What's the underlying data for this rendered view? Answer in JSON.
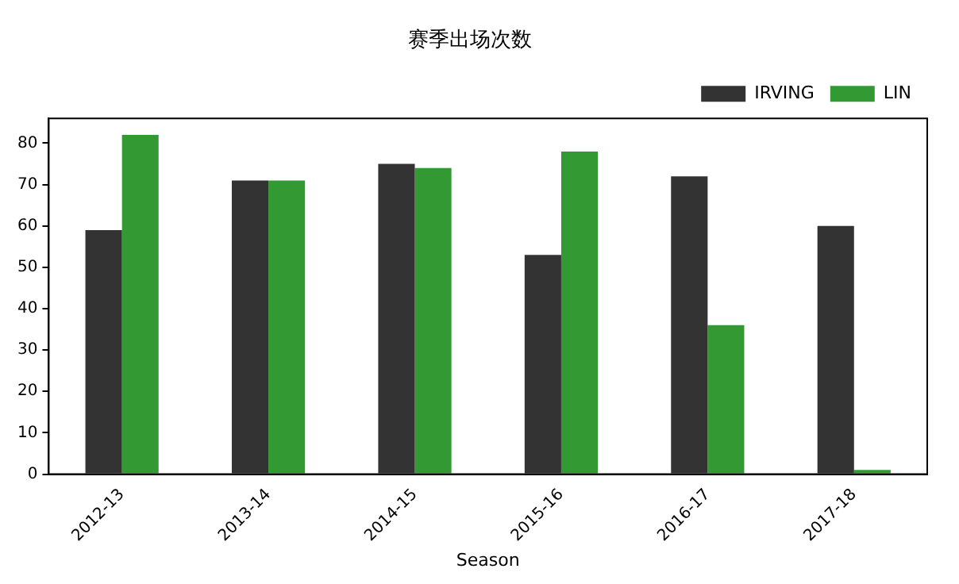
{
  "chart_data": {
    "type": "bar",
    "title": "赛季出场次数",
    "xlabel": "Season",
    "categories": [
      "2012-13",
      "2013-14",
      "2014-15",
      "2015-16",
      "2016-17",
      "2017-18"
    ],
    "series": [
      {
        "name": "IRVING",
        "color": "#333333",
        "values": [
          59,
          71,
          75,
          53,
          72,
          60
        ]
      },
      {
        "name": "LIN",
        "color": "#339933",
        "values": [
          82,
          71,
          74,
          78,
          36,
          1
        ]
      }
    ],
    "ylim": [
      0,
      86
    ],
    "yticks": [
      0,
      10,
      20,
      30,
      40,
      50,
      60,
      70,
      80
    ],
    "grid": false,
    "legend": "top right"
  }
}
